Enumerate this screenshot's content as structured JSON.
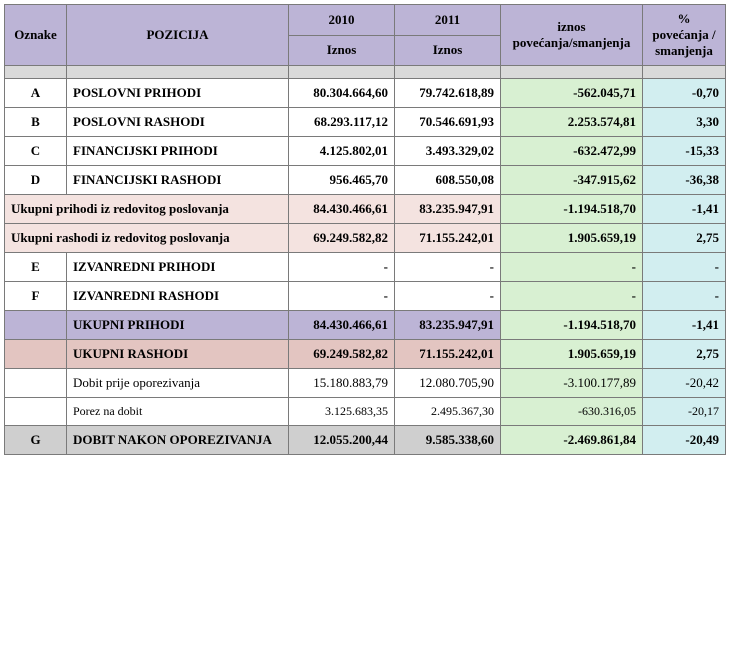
{
  "colors": {
    "header_purple": "#bcb4d6",
    "spacer_gray": "#d9d9d9",
    "white": "#ffffff",
    "green": "#d8f0d2",
    "cyan": "#d2eef0",
    "pale_pink": "#f4e3e0",
    "darker_pink": "#e3c5c1",
    "purple_row": "#bcb4d6",
    "gray_row": "#cfcfcf"
  },
  "header": {
    "oznake": "Oznake",
    "pozicija": "POZICIJA",
    "year1": "2010",
    "year2": "2011",
    "iznos_label": "Iznos",
    "iznos_diff": "iznos povećanja/smanjenja",
    "pct": "% povećanja / smanjenja"
  },
  "rows": [
    {
      "type": "data",
      "bold": true,
      "oznake": "A",
      "pozicija": "POSLOVNI PRIHODI",
      "y1": "80.304.664,60",
      "y2": "79.742.618,89",
      "diff": "-562.045,71",
      "pct": "-0,70",
      "fill12": "white",
      "fill3": "green",
      "fill4": "cyan"
    },
    {
      "type": "data",
      "bold": true,
      "oznake": "B",
      "pozicija": "POSLOVNI RASHODI",
      "y1": "68.293.117,12",
      "y2": "70.546.691,93",
      "diff": "2.253.574,81",
      "pct": "3,30",
      "fill12": "white",
      "fill3": "green",
      "fill4": "cyan"
    },
    {
      "type": "data",
      "bold": true,
      "oznake": "C",
      "pozicija": "FINANCIJSKI PRIHODI",
      "y1": "4.125.802,01",
      "y2": "3.493.329,02",
      "diff": "-632.472,99",
      "pct": "-15,33",
      "fill12": "white",
      "fill3": "green",
      "fill4": "cyan"
    },
    {
      "type": "data",
      "bold": true,
      "oznake": "D",
      "pozicija": "FINANCIJSKI RASHODI",
      "y1": "956.465,70",
      "y2": "608.550,08",
      "diff": "-347.915,62",
      "pct": "-36,38",
      "fill12": "white",
      "fill3": "green",
      "fill4": "cyan"
    },
    {
      "type": "merged",
      "bold": true,
      "label": "Ukupni prihodi iz redovitog poslovanja",
      "y1": "84.430.466,61",
      "y2": "83.235.947,91",
      "diff": "-1.194.518,70",
      "pct": "-1,41",
      "fill12": "pale_pink",
      "fill3": "green",
      "fill4": "cyan"
    },
    {
      "type": "merged",
      "bold": true,
      "label": "Ukupni rashodi iz redovitog poslovanja",
      "y1": "69.249.582,82",
      "y2": "71.155.242,01",
      "diff": "1.905.659,19",
      "pct": "2,75",
      "fill12": "pale_pink",
      "fill3": "green",
      "fill4": "cyan"
    },
    {
      "type": "data",
      "bold": true,
      "oznake": "E",
      "pozicija": "IZVANREDNI PRIHODI",
      "y1": "-",
      "y2": "-",
      "diff": "-",
      "pct": "-",
      "fill12": "white",
      "fill3": "green",
      "fill4": "cyan"
    },
    {
      "type": "data",
      "bold": true,
      "oznake": "F",
      "pozicija": "IZVANREDNI RASHODI",
      "y1": "-",
      "y2": "-",
      "diff": "-",
      "pct": "-",
      "fill12": "white",
      "fill3": "green",
      "fill4": "cyan"
    },
    {
      "type": "data",
      "bold": true,
      "oznake": "",
      "pozicija": "UKUPNI PRIHODI",
      "y1": "84.430.466,61",
      "y2": "83.235.947,91",
      "diff": "-1.194.518,70",
      "pct": "-1,41",
      "fill12": "purple_row",
      "fill3": "green",
      "fill4": "cyan"
    },
    {
      "type": "data",
      "bold": true,
      "oznake": "",
      "pozicija": "UKUPNI RASHODI",
      "y1": "69.249.582,82",
      "y2": "71.155.242,01",
      "diff": "1.905.659,19",
      "pct": "2,75",
      "fill12": "darker_pink",
      "fill3": "green",
      "fill4": "cyan"
    },
    {
      "type": "data",
      "bold": false,
      "oznake": "",
      "pozicija": "Dobit prije oporezivanja",
      "y1": "15.180.883,79",
      "y2": "12.080.705,90",
      "diff": "-3.100.177,89",
      "pct": "-20,42",
      "fill12": "white",
      "fill3": "green",
      "fill4": "cyan"
    },
    {
      "type": "data",
      "bold": false,
      "small": true,
      "oznake": "",
      "pozicija": "Porez na dobit",
      "y1": "3.125.683,35",
      "y2": "2.495.367,30",
      "diff": "-630.316,05",
      "pct": "-20,17",
      "fill12": "white",
      "fill3": "green",
      "fill4": "cyan"
    },
    {
      "type": "data",
      "bold": true,
      "oznake": "G",
      "pozicija": "DOBIT NAKON OPOREZIVANJA",
      "y1": "12.055.200,44",
      "y2": "9.585.338,60",
      "diff": "-2.469.861,84",
      "pct": "-20,49",
      "fill12": "gray_row",
      "fill3": "green",
      "fill4": "cyan"
    }
  ]
}
